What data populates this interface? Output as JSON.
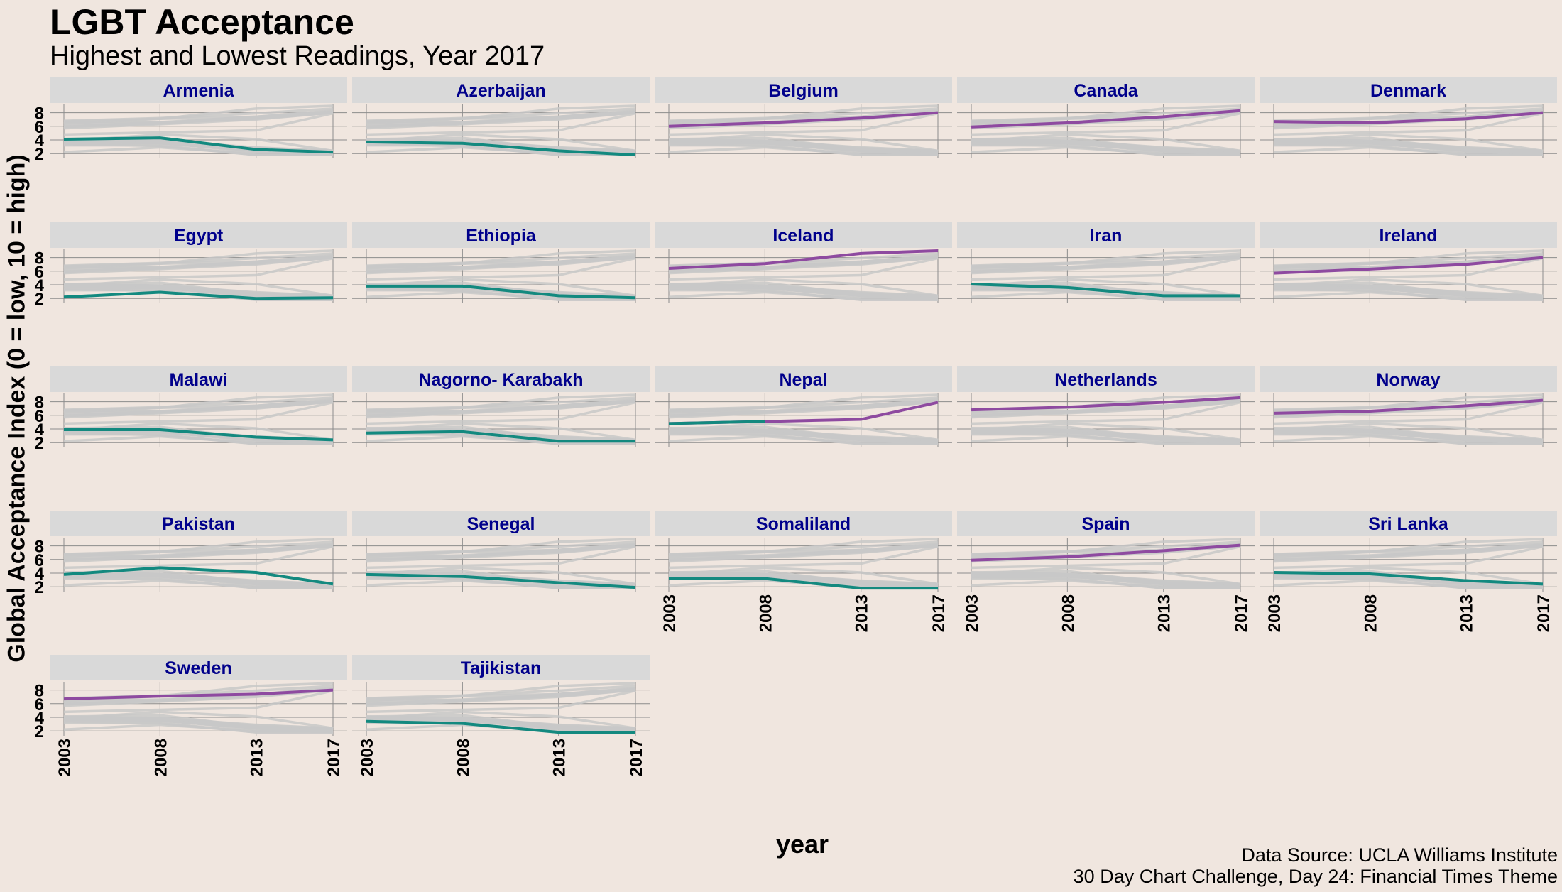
{
  "title": "LGBT Acceptance",
  "subtitle": "Highest and Lowest Readings, Year 2017",
  "caption_lines": [
    "Data Source: UCLA Williams Institute",
    "30 Day Chart Challenge, Day 24: Financial Times Theme"
  ],
  "colors": {
    "background": "#F0E6DF",
    "strip": "#D9D9D9",
    "strip_text": "#00008B",
    "background_lines": "#C8C8C8",
    "highest": "#8E4AA0",
    "lowest": "#13897F",
    "grid": "#8C8C8C"
  },
  "chart_data": {
    "type": "line",
    "facet": "country",
    "xlabel": "year",
    "ylabel": "Global Acceptance Index (0 = low, 10 = high)",
    "x": [
      2003,
      2008,
      2013,
      2017
    ],
    "x_ticks": [
      2003,
      2008,
      2013,
      2017
    ],
    "y_ticks": [
      2,
      4,
      6,
      8
    ],
    "ylim": [
      1.5,
      9.0
    ],
    "grid": true,
    "panels": [
      {
        "country": "Armenia",
        "group": "lowest",
        "values": [
          4.1,
          4.3,
          2.6,
          2.2
        ]
      },
      {
        "country": "Azerbaijan",
        "group": "lowest",
        "values": [
          3.7,
          3.5,
          2.4,
          1.8
        ]
      },
      {
        "country": "Belgium",
        "group": "highest",
        "values": [
          6.0,
          6.5,
          7.2,
          8.0
        ]
      },
      {
        "country": "Canada",
        "group": "highest",
        "values": [
          5.9,
          6.5,
          7.4,
          8.3
        ]
      },
      {
        "country": "Denmark",
        "group": "highest",
        "values": [
          6.7,
          6.5,
          7.1,
          8.0
        ]
      },
      {
        "country": "Egypt",
        "group": "lowest",
        "values": [
          2.2,
          2.9,
          2.0,
          2.1
        ]
      },
      {
        "country": "Ethiopia",
        "group": "lowest",
        "values": [
          3.8,
          3.8,
          2.4,
          2.1
        ]
      },
      {
        "country": "Iceland",
        "group": "highest",
        "values": [
          6.4,
          7.1,
          8.6,
          9.0
        ]
      },
      {
        "country": "Iran",
        "group": "lowest",
        "values": [
          4.1,
          3.6,
          2.4,
          2.4
        ]
      },
      {
        "country": "Ireland",
        "group": "highest",
        "values": [
          5.7,
          6.3,
          7.0,
          8.0
        ]
      },
      {
        "country": "Malawi",
        "group": "lowest",
        "values": [
          3.9,
          3.9,
          2.8,
          2.4
        ]
      },
      {
        "country": "Nagorno- Karabakh",
        "group": "lowest",
        "values": [
          3.4,
          3.6,
          2.2,
          2.2
        ]
      },
      {
        "country": "Nepal",
        "group": "highest",
        "values": [
          4.8,
          5.1,
          5.4,
          7.9
        ],
        "lowest_segment_to_index": 1
      },
      {
        "country": "Netherlands",
        "group": "highest",
        "values": [
          6.8,
          7.2,
          7.9,
          8.6
        ]
      },
      {
        "country": "Norway",
        "group": "highest",
        "values": [
          6.3,
          6.6,
          7.4,
          8.2
        ]
      },
      {
        "country": "Pakistan",
        "group": "lowest",
        "values": [
          3.8,
          4.8,
          4.1,
          2.4
        ]
      },
      {
        "country": "Senegal",
        "group": "lowest",
        "values": [
          3.8,
          3.5,
          2.6,
          1.9
        ]
      },
      {
        "country": "Somaliland",
        "group": "lowest",
        "values": [
          3.2,
          3.2,
          1.8,
          1.8
        ]
      },
      {
        "country": "Spain",
        "group": "highest",
        "values": [
          5.9,
          6.4,
          7.3,
          8.1
        ]
      },
      {
        "country": "Sri Lanka",
        "group": "lowest",
        "values": [
          4.1,
          3.9,
          2.9,
          2.4
        ]
      },
      {
        "country": "Sweden",
        "group": "highest",
        "values": [
          6.7,
          7.1,
          7.4,
          8.0
        ]
      },
      {
        "country": "Tajikistan",
        "group": "lowest",
        "values": [
          3.4,
          3.1,
          1.8,
          1.8
        ]
      }
    ]
  }
}
